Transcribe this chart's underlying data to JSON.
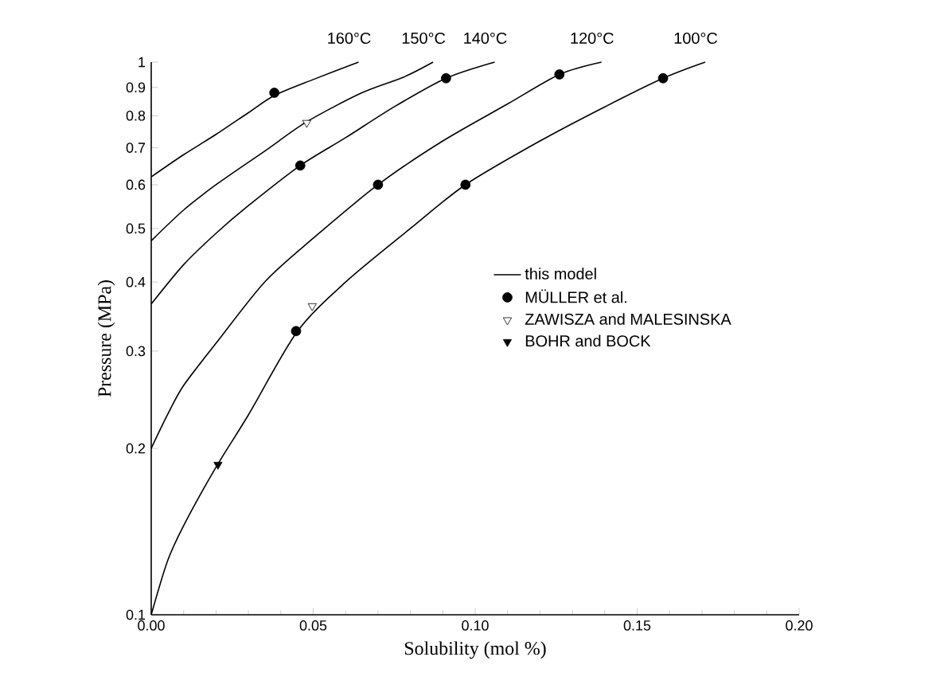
{
  "chart_data": {
    "type": "line",
    "xlabel": "Solubility (mol %)",
    "ylabel": "Pressure (MPa)",
    "log": "y",
    "xlim": [
      0,
      0.2
    ],
    "ylim": [
      0.1,
      1
    ],
    "xticks": [
      {
        "value": 0,
        "label": "0.00"
      },
      0.05,
      {
        "value": 0.1,
        "label": "0.10"
      },
      0.15,
      {
        "value": 0.2,
        "label": "0.20"
      }
    ],
    "yticks": [
      0.1,
      0.2,
      0.3,
      0.4,
      0.5,
      0.6,
      0.7,
      0.8,
      0.9,
      1
    ],
    "legend": "right",
    "line_style": "solid",
    "annotations": [
      {
        "text": "160°C",
        "x": 0.064,
        "y": 1.0
      },
      {
        "text": "150°C",
        "x": 0.087,
        "y": 1.0
      },
      {
        "text": "140°C",
        "x": 0.106,
        "y": 1.0
      },
      {
        "text": "120°C",
        "x": 0.139,
        "y": 1.0
      },
      {
        "text": "100°C",
        "x": 0.171,
        "y": 1.0
      }
    ],
    "series": [
      {
        "name": "this model",
        "color": "#000000",
        "x": [
          0,
          0.005,
          0.01,
          0.02,
          0.03,
          0.045,
          0.06,
          0.08,
          0.097,
          0.12,
          0.14,
          0.158,
          0.171
        ],
        "values": [
          0.1,
          0.125,
          0.145,
          0.185,
          0.23,
          0.325,
          0.4,
          0.5,
          0.6,
          0.72,
          0.83,
          0.935,
          1.0
        ]
      },
      {
        "color": "#000000",
        "x": [
          0,
          0.005,
          0.01,
          0.02,
          0.035,
          0.05,
          0.07,
          0.09,
          0.11,
          0.126,
          0.139
        ],
        "values": [
          0.2,
          0.23,
          0.26,
          0.31,
          0.4,
          0.48,
          0.6,
          0.72,
          0.84,
          0.95,
          1.0
        ]
      },
      {
        "color": "#000000",
        "x": [
          0,
          0.01,
          0.02,
          0.03,
          0.046,
          0.06,
          0.075,
          0.091,
          0.106
        ],
        "values": [
          0.365,
          0.43,
          0.49,
          0.55,
          0.65,
          0.73,
          0.83,
          0.935,
          1.0
        ]
      },
      {
        "color": "#000000",
        "x": [
          0,
          0.01,
          0.02,
          0.035,
          0.048,
          0.065,
          0.078,
          0.087
        ],
        "values": [
          0.475,
          0.54,
          0.6,
          0.69,
          0.78,
          0.88,
          0.94,
          1.0
        ]
      },
      {
        "color": "#000000",
        "x": [
          0,
          0.01,
          0.02,
          0.03,
          0.038,
          0.05,
          0.064
        ],
        "values": [
          0.62,
          0.68,
          0.74,
          0.81,
          0.87,
          0.93,
          1.0
        ]
      },
      {
        "type": "scatter",
        "name": "MÜLLER et al.",
        "color": "#000000",
        "marker": "circle",
        "x": [
          0.038,
          0.046,
          0.091,
          0.07,
          0.126,
          0.0447,
          0.097,
          0.158
        ],
        "values": [
          0.88,
          0.65,
          0.935,
          0.6,
          0.95,
          0.326,
          0.6,
          0.935
        ]
      },
      {
        "type": "scatter",
        "name": "ZAWISZA and MALESINSKA",
        "color": "#ffffff",
        "marker": "triangle",
        "x": [
          0.048,
          0.0497
        ],
        "values": [
          0.777,
          0.362
        ]
      },
      {
        "type": "scatter",
        "name": "BOHR and BOCK",
        "color": "#000000",
        "marker": "triangle",
        "x": [
          0.0206
        ],
        "values": [
          0.187
        ]
      }
    ]
  }
}
